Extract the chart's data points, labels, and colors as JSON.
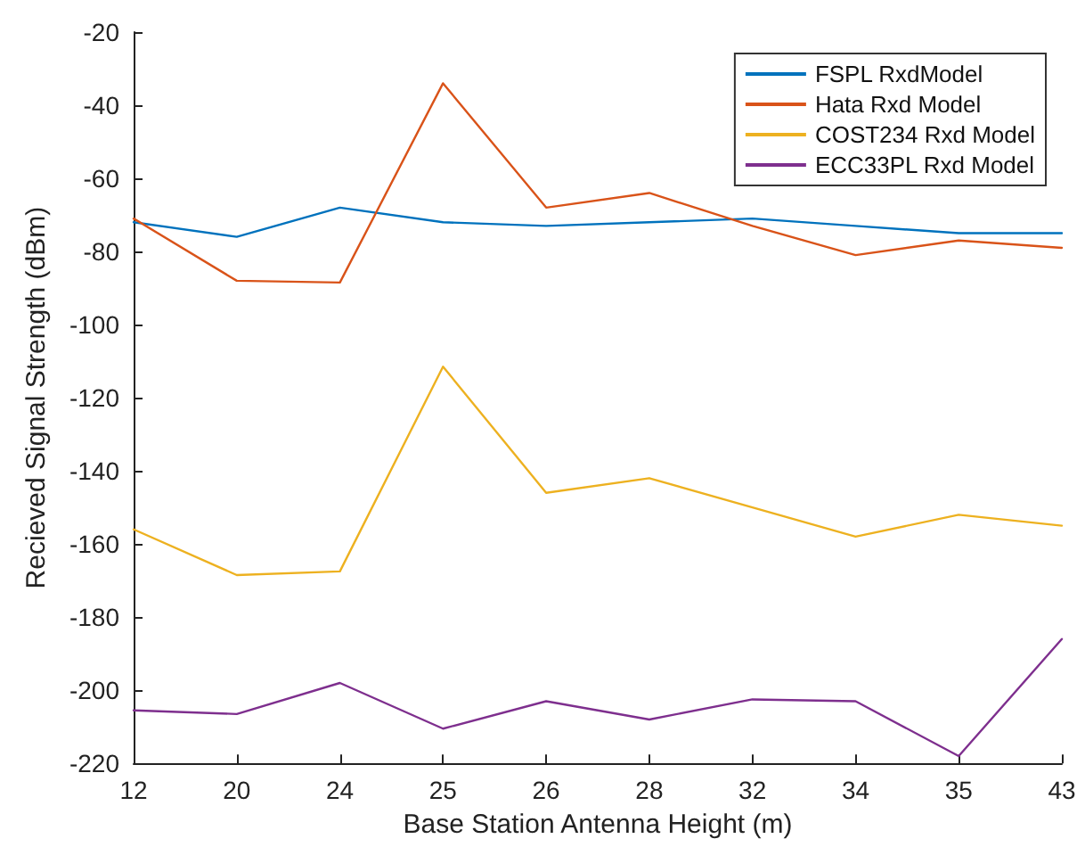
{
  "chart_data": {
    "type": "line",
    "xlabel": "Base Station Antenna Height (m)",
    "ylabel": "Recieved Signal Strength (dBm)",
    "categories": [
      "12",
      "20",
      "24",
      "25",
      "26",
      "28",
      "32",
      "34",
      "35",
      "43"
    ],
    "series": [
      {
        "name": "FSPL RxdModel",
        "color": "#0072bd",
        "values": [
          -72,
          -76,
          -68,
          -72,
          -73,
          -72,
          -71,
          -73,
          -75,
          -75
        ]
      },
      {
        "name": "Hata Rxd Model",
        "color": "#d95319",
        "values": [
          -71,
          -88,
          -88.5,
          -34,
          -68,
          -64,
          -73,
          -81,
          -77,
          -79
        ]
      },
      {
        "name": "COST234 Rxd Model",
        "color": "#edb120",
        "values": [
          -156,
          -168.5,
          -167.5,
          -111.5,
          -146,
          -142,
          -150,
          -158,
          -152,
          -155
        ]
      },
      {
        "name": "ECC33PL Rxd Model",
        "color": "#7e2f8e",
        "values": [
          -205.5,
          -206.5,
          -198,
          -210.5,
          -203,
          -208,
          -202.5,
          -203,
          -218,
          -186
        ]
      }
    ],
    "ylim": [
      -220,
      -20
    ],
    "yticks": [
      -220,
      -200,
      -180,
      -160,
      -140,
      -120,
      -100,
      -80,
      -60,
      -40,
      -20
    ],
    "grid": false,
    "legend": "top right",
    "marker": "none",
    "line_style": "solid"
  }
}
